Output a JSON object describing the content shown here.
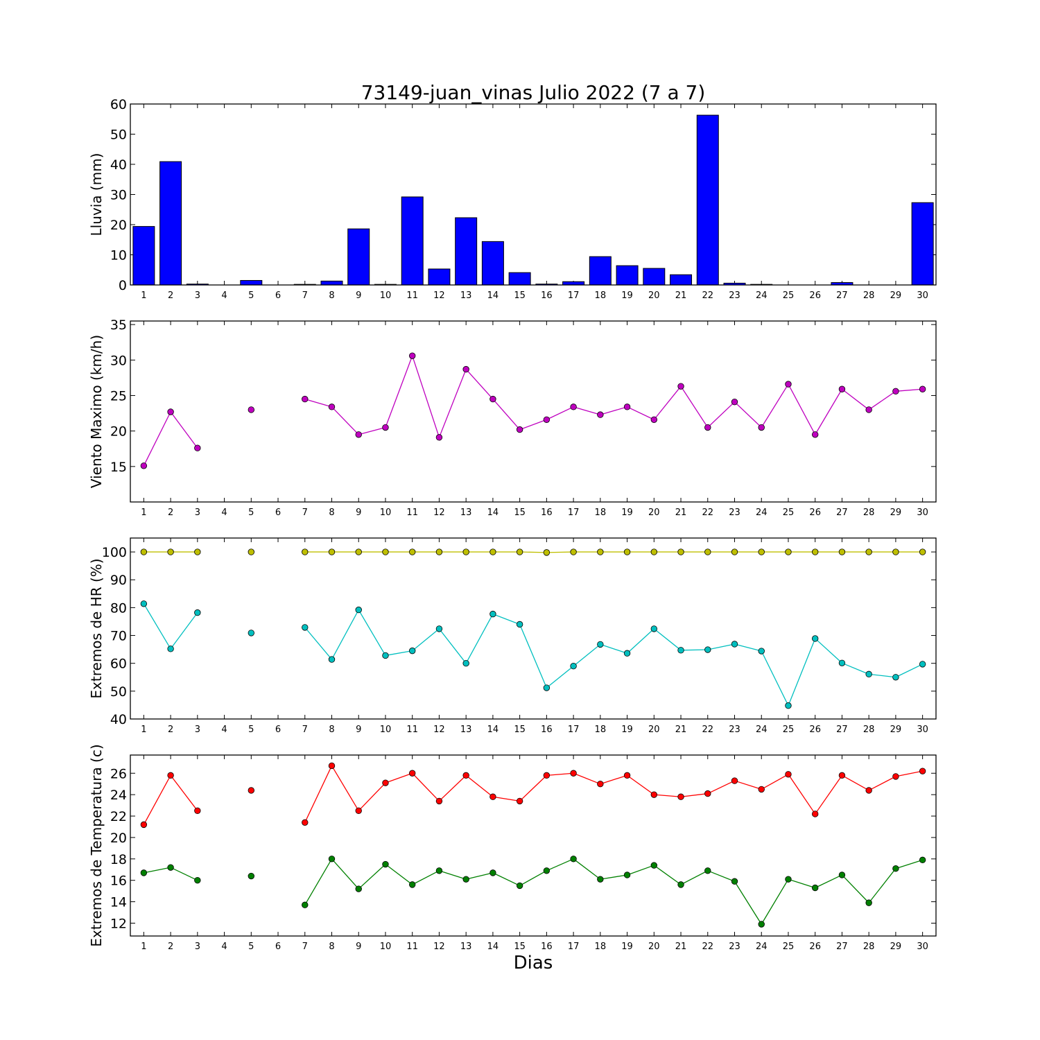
{
  "figure": {
    "title": "73149-juan_vinas Julio 2022  (7 a 7)",
    "xlabel": "Dias"
  },
  "chart_data": [
    {
      "type": "bar",
      "ylabel": "Lluvia (mm)",
      "ylim": [
        0,
        60
      ],
      "yticks": [
        0,
        10,
        20,
        30,
        40,
        50,
        60
      ],
      "categories": [
        "1",
        "2",
        "3",
        "4",
        "5",
        "6",
        "7",
        "8",
        "9",
        "10",
        "11",
        "12",
        "13",
        "14",
        "15",
        "16",
        "17",
        "18",
        "19",
        "20",
        "21",
        "22",
        "23",
        "24",
        "25",
        "26",
        "27",
        "28",
        "29",
        "30"
      ],
      "series": [
        {
          "color": "#0000ff",
          "values": [
            19.4,
            40.9,
            0.3,
            0,
            1.5,
            0,
            0.2,
            1.3,
            18.6,
            0.2,
            29.2,
            5.3,
            22.3,
            14.4,
            4.1,
            0.3,
            1.1,
            9.4,
            6.4,
            5.5,
            3.4,
            56.3,
            0.6,
            0.2,
            0,
            0,
            0.8,
            0,
            0,
            27.3
          ]
        }
      ]
    },
    {
      "type": "line",
      "ylabel": "Viento Maximo (km/h)",
      "ylim": [
        10,
        35.5
      ],
      "yticks": [
        15,
        20,
        25,
        30,
        35
      ],
      "x": [
        1,
        2,
        3,
        4,
        5,
        6,
        7,
        8,
        9,
        10,
        11,
        12,
        13,
        14,
        15,
        16,
        17,
        18,
        19,
        20,
        21,
        22,
        23,
        24,
        25,
        26,
        27,
        28,
        29,
        30
      ],
      "series": [
        {
          "color": "#bf00bf",
          "values": [
            15.1,
            22.7,
            17.6,
            null,
            23.0,
            null,
            24.5,
            23.4,
            19.5,
            20.5,
            30.6,
            19.1,
            28.7,
            24.5,
            20.2,
            21.6,
            23.4,
            22.3,
            23.4,
            21.6,
            26.3,
            20.5,
            24.1,
            20.5,
            26.6,
            19.5,
            25.9,
            23.0,
            25.6,
            25.9
          ]
        }
      ]
    },
    {
      "type": "line",
      "ylabel": "Extremos de HR (%)",
      "ylim": [
        40,
        105
      ],
      "yticks": [
        40,
        50,
        60,
        70,
        80,
        90,
        100
      ],
      "x": [
        1,
        2,
        3,
        4,
        5,
        6,
        7,
        8,
        9,
        10,
        11,
        12,
        13,
        14,
        15,
        16,
        17,
        18,
        19,
        20,
        21,
        22,
        23,
        24,
        25,
        26,
        27,
        28,
        29,
        30
      ],
      "series": [
        {
          "color": "#bfbf00",
          "values": [
            100,
            100,
            100,
            null,
            100,
            null,
            100,
            100,
            100,
            100,
            100,
            100,
            100,
            100,
            100,
            99.8,
            100,
            100,
            100,
            100,
            100,
            100,
            100,
            100,
            100,
            100,
            100,
            100,
            100,
            100
          ]
        },
        {
          "color": "#00bfbf",
          "values": [
            81.4,
            65.2,
            78.2,
            null,
            70.9,
            null,
            72.9,
            61.4,
            79.2,
            62.8,
            64.5,
            72.4,
            60.0,
            77.7,
            74.0,
            51.2,
            59.0,
            66.8,
            63.6,
            72.4,
            64.7,
            64.9,
            66.9,
            64.4,
            44.8,
            68.9,
            60.1,
            56.1,
            55.0,
            59.7
          ]
        }
      ]
    },
    {
      "type": "line",
      "ylabel": "Extremos de Temperatura (c)",
      "ylim": [
        10.8,
        27.7
      ],
      "yticks": [
        12,
        14,
        16,
        18,
        20,
        22,
        24,
        26
      ],
      "x": [
        1,
        2,
        3,
        4,
        5,
        6,
        7,
        8,
        9,
        10,
        11,
        12,
        13,
        14,
        15,
        16,
        17,
        18,
        19,
        20,
        21,
        22,
        23,
        24,
        25,
        26,
        27,
        28,
        29,
        30
      ],
      "series": [
        {
          "color": "#ff0000",
          "values": [
            21.2,
            25.8,
            22.5,
            null,
            24.4,
            null,
            21.4,
            26.7,
            22.5,
            25.1,
            26.0,
            23.4,
            25.8,
            23.8,
            23.4,
            25.8,
            26.0,
            25.0,
            25.8,
            24.0,
            23.8,
            24.1,
            25.3,
            24.5,
            25.9,
            22.2,
            25.8,
            24.4,
            25.7,
            26.2
          ]
        },
        {
          "color": "#008000",
          "values": [
            16.7,
            17.2,
            16.0,
            null,
            16.4,
            null,
            13.7,
            18.0,
            15.2,
            17.5,
            15.6,
            16.9,
            16.1,
            16.7,
            15.5,
            16.9,
            18.0,
            16.1,
            16.5,
            17.4,
            15.6,
            16.9,
            15.9,
            11.9,
            16.1,
            15.3,
            16.5,
            13.9,
            17.1,
            17.9
          ]
        }
      ]
    }
  ]
}
